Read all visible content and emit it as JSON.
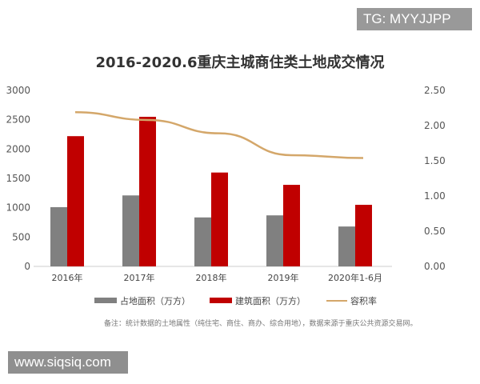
{
  "watermark_top": "TG: MYYJJPP",
  "watermark_bottom": "www.siqsiq.com",
  "chart_data": {
    "type": "bar",
    "title": "2016-2020.6重庆主城商住类土地成交情况",
    "categories": [
      "2016年",
      "2017年",
      "2018年",
      "2019年",
      "2020年1-6月"
    ],
    "series": [
      {
        "name": "占地面积（万方）",
        "type": "bar",
        "axis": "left",
        "color": "#808080",
        "values": [
          1010,
          1210,
          835,
          870,
          680
        ]
      },
      {
        "name": "建筑面积（万方）",
        "type": "bar",
        "axis": "left",
        "color": "#c00000",
        "values": [
          2220,
          2550,
          1600,
          1390,
          1050
        ]
      },
      {
        "name": "容积率",
        "type": "line",
        "axis": "right",
        "color": "#d4a76a",
        "values": [
          2.19,
          2.08,
          1.89,
          1.58,
          1.54
        ]
      }
    ],
    "ylim_left": [
      0,
      3000
    ],
    "yticks_left": [
      "0",
      "500",
      "1000",
      "1500",
      "2000",
      "2500",
      "3000"
    ],
    "ylim_right": [
      0,
      2.5
    ],
    "yticks_right": [
      "0.00",
      "0.50",
      "1.00",
      "1.50",
      "2.00",
      "2.50"
    ],
    "grid": false,
    "legend_position": "bottom",
    "note": "备注：统计数据的土地属性（纯住宅、商住、商办、综合用地），数据来源于重庆公共资源交易网。"
  }
}
